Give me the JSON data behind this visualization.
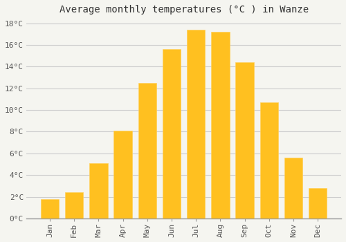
{
  "months": [
    "Jan",
    "Feb",
    "Mar",
    "Apr",
    "May",
    "Jun",
    "Jul",
    "Aug",
    "Sep",
    "Oct",
    "Nov",
    "Dec"
  ],
  "temperatures": [
    1.8,
    2.4,
    5.1,
    8.1,
    12.5,
    15.6,
    17.4,
    17.2,
    14.4,
    10.7,
    5.6,
    2.8
  ],
  "bar_color": "#FFC020",
  "bar_edge_color": "#FFD060",
  "background_color": "#f5f5f0",
  "plot_bg_color": "#f5f5f0",
  "grid_color": "#cccccc",
  "title": "Average monthly temperatures (°C ) in Wanze",
  "title_fontsize": 10,
  "title_color": "#333333",
  "axis_font": "monospace",
  "tick_fontsize": 8,
  "tick_color": "#555555",
  "ylim_min": 0,
  "ylim_max": 18,
  "ytick_interval": 2,
  "bar_width": 0.75
}
